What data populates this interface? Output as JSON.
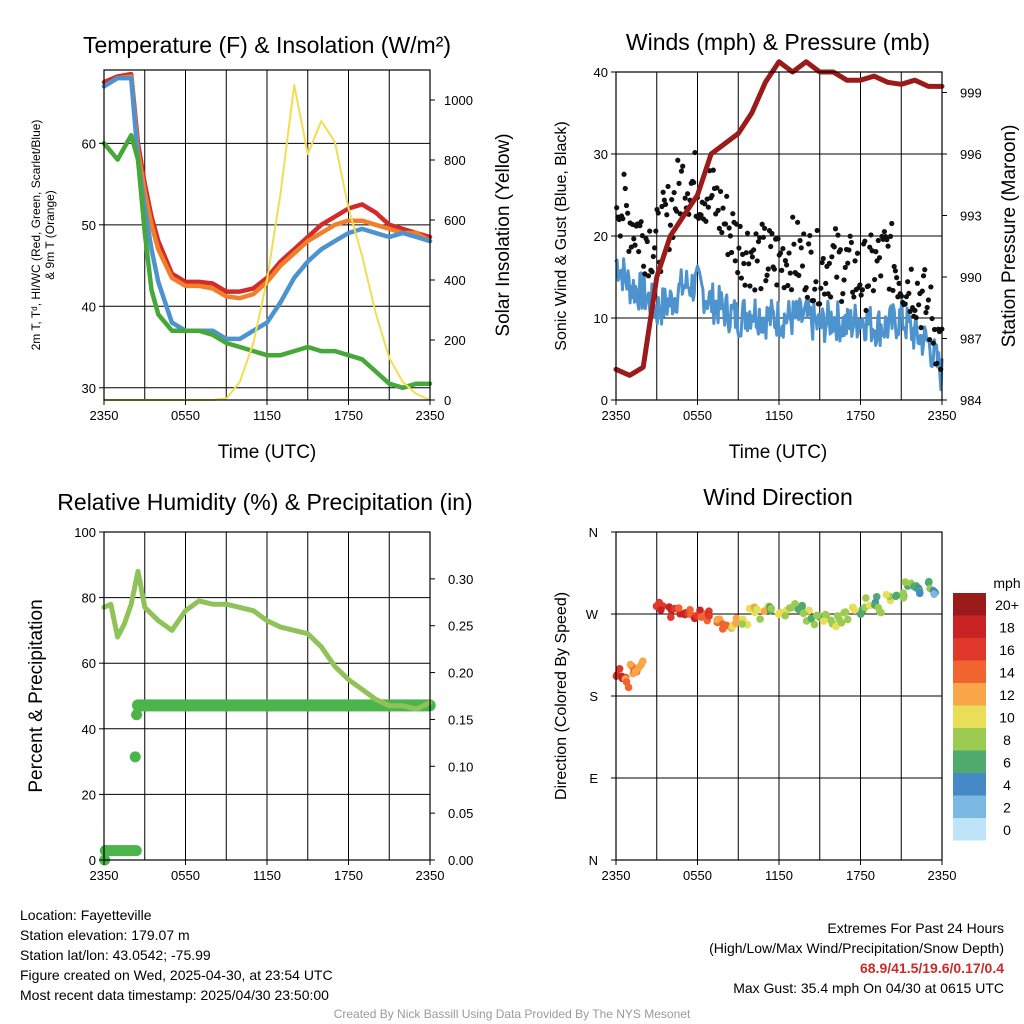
{
  "chart_data": [
    {
      "type": "line",
      "title": "Temperature (F) & Insolation (W/m²)",
      "xlabel": "Time (UTC)",
      "ylabel": "2m T, Tᵈ, HI/WC (Red, Green, Scarlet/Blue) & 9m T (Orange)",
      "ylabel_line1": "2m T, Tᵈ, HI/WC (Red, Green, Scarlet/Blue)",
      "ylabel_line2": "& 9m T (Orange)",
      "y2label": "Solar Insolation (Yellow)",
      "x_ticks": [
        "2350",
        "0550",
        "1150",
        "1750",
        "2350"
      ],
      "ylim": [
        28.5,
        69
      ],
      "y_ticks": [
        30,
        40,
        50,
        60
      ],
      "y2lim": [
        0,
        1100
      ],
      "y2_ticks": [
        0,
        200,
        400,
        600,
        800,
        1000
      ],
      "x_hours": [
        0,
        1,
        2,
        2.5,
        3,
        3.5,
        4,
        5,
        6,
        7,
        8,
        9,
        10,
        11,
        12,
        13,
        14,
        15,
        16,
        17,
        18,
        19,
        20,
        21,
        22,
        23,
        24
      ],
      "series": [
        {
          "name": "2m T",
          "color": "#d42a2a",
          "axis": "left",
          "values": [
            67.5,
            68.2,
            68.5,
            60,
            55,
            51,
            48,
            44,
            43,
            43,
            42.8,
            41.8,
            41.8,
            42.2,
            43.5,
            45.5,
            47,
            48.5,
            50,
            51,
            52,
            52.5,
            51.5,
            50,
            49.5,
            49,
            48.5
          ]
        },
        {
          "name": "9m T",
          "color": "#f07e2a",
          "axis": "left",
          "values": [
            67,
            68,
            68.2,
            59,
            54,
            50,
            47,
            43.5,
            42.5,
            42.5,
            42.2,
            41.2,
            41,
            41.5,
            43,
            45,
            46.5,
            48,
            49,
            50,
            50.5,
            50.5,
            50,
            49.5,
            49,
            49,
            48
          ]
        },
        {
          "name": "WC",
          "color": "#4d94cf",
          "axis": "left",
          "values": [
            67,
            68,
            68,
            58,
            52,
            47,
            43,
            38,
            37,
            37,
            37,
            36,
            36,
            37,
            38,
            40.5,
            43.5,
            45.5,
            47,
            48,
            49,
            49.5,
            49,
            48.5,
            49,
            48.5,
            48
          ]
        },
        {
          "name": "2m Td",
          "color": "#45a838",
          "axis": "left",
          "values": [
            60,
            58,
            61,
            58,
            49,
            42,
            39,
            37,
            37,
            37,
            36.5,
            35.5,
            35,
            34.5,
            34,
            34,
            34.5,
            35,
            34.5,
            34.5,
            34,
            33.5,
            32,
            30.5,
            30,
            30.5,
            30.5
          ]
        },
        {
          "name": "Solar Insolation",
          "color": "#f2de52",
          "axis": "right",
          "values": [
            0,
            0,
            0,
            0,
            0,
            0,
            0,
            0,
            0,
            0,
            0,
            5,
            60,
            190,
            400,
            690,
            1050,
            820,
            930,
            860,
            640,
            480,
            290,
            140,
            60,
            20,
            0
          ]
        }
      ]
    },
    {
      "type": "scatter",
      "title": "Winds (mph) & Pressure (mb)",
      "xlabel": "Time (UTC)",
      "ylabel": "Sonic Wind & Gust (Blue, Black)",
      "y2label": "Station Pressure (Maroon)",
      "x_ticks": [
        "2350",
        "0550",
        "1150",
        "1750",
        "2350"
      ],
      "ylim": [
        0,
        40
      ],
      "y_ticks": [
        0,
        10,
        20,
        30,
        40
      ],
      "y2lim": [
        984,
        1000
      ],
      "y2_ticks": [
        984,
        987,
        990,
        993,
        996,
        999
      ],
      "x_hours": [
        0,
        1,
        2,
        3,
        4,
        5,
        6,
        7,
        8,
        9,
        10,
        11,
        12,
        13,
        14,
        15,
        16,
        17,
        18,
        19,
        20,
        21,
        22,
        23,
        24
      ],
      "series": [
        {
          "name": "Sonic Wind",
          "color": "#4d94cf",
          "axis": "left",
          "values": [
            17,
            14,
            13,
            11,
            12,
            14,
            14,
            12,
            11,
            10,
            11,
            10,
            10,
            10,
            10,
            9,
            10,
            9,
            10,
            9,
            9,
            10,
            8,
            7,
            3
          ]
        },
        {
          "name": "Gust",
          "color": "#111111",
          "axis": "left",
          "values": [
            25,
            22,
            20,
            19,
            23,
            27,
            26,
            25,
            22,
            19,
            18,
            17,
            17,
            18,
            17,
            16,
            17,
            16,
            15,
            16,
            18,
            15,
            14,
            11,
            6
          ]
        },
        {
          "name": "Station Pressure",
          "color": "#9b1b1b",
          "axis": "right",
          "values": [
            985.5,
            985.2,
            985.6,
            990,
            992,
            993,
            994,
            996,
            996.5,
            997,
            998,
            999.5,
            1000.5,
            1000,
            1000.5,
            1000,
            1000,
            999.6,
            999.6,
            999.8,
            999.5,
            999.4,
            999.6,
            999.3,
            999.3
          ]
        }
      ]
    },
    {
      "type": "line",
      "title": "Relative Humidity (%) & Precipitation (in)",
      "ylabel": "Percent & Precipitation",
      "x_ticks": [
        "2350",
        "0550",
        "1150",
        "1750",
        "2350"
      ],
      "ylim": [
        0,
        100
      ],
      "y_ticks": [
        0,
        20,
        40,
        60,
        80,
        100
      ],
      "y2lim": [
        0,
        0.35
      ],
      "y2_ticks": [
        "0.00",
        "0.05",
        "0.10",
        "0.15",
        "0.20",
        "0.25",
        "0.30"
      ],
      "x_hours": [
        0,
        0.5,
        1,
        1.5,
        2,
        2.5,
        3,
        4,
        5,
        6,
        7,
        8,
        9,
        10,
        11,
        12,
        13,
        14,
        15,
        16,
        17,
        18,
        19,
        20,
        21,
        22,
        23,
        24
      ],
      "series": [
        {
          "name": "Relative Humidity",
          "color": "#8fc35a",
          "axis": "left",
          "values": [
            77,
            78,
            68,
            72,
            78,
            88,
            77,
            73,
            70,
            76,
            79,
            78,
            78,
            77,
            76,
            73,
            71,
            70,
            69,
            65,
            59,
            55,
            52,
            49,
            47,
            47,
            46,
            48
          ]
        },
        {
          "name": "Precipitation",
          "color": "#4bb54b",
          "axis": "right",
          "values": [
            0.0,
            0.01,
            0.01,
            0.01,
            0.01,
            0.165,
            0.165,
            0.165,
            0.165,
            0.165,
            0.165,
            0.165,
            0.165,
            0.165,
            0.165,
            0.165,
            0.165,
            0.165,
            0.165,
            0.165,
            0.165,
            0.165,
            0.165,
            0.165,
            0.165,
            0.165,
            0.165,
            0.165
          ]
        }
      ],
      "precip_step_points": [
        [
          0.05,
          0.0
        ],
        [
          0.1,
          0.01
        ],
        [
          2.3,
          0.11
        ],
        [
          2.4,
          0.155
        ]
      ]
    },
    {
      "type": "scatter",
      "title": "Wind Direction",
      "ylabel": "Direction (Colored By Speed)",
      "x_ticks": [
        "2350",
        "0550",
        "1150",
        "1750",
        "2350"
      ],
      "y_ticks": [
        "N",
        "E",
        "S",
        "W",
        "N"
      ],
      "ylim": [
        0,
        360
      ],
      "colorbar_title": "mph",
      "colorbar_labels": [
        "20+",
        "18",
        "16",
        "14",
        "12",
        "10",
        "8",
        "6",
        "4",
        "2",
        "0"
      ],
      "colorbar_colors": [
        "#9b1b1b",
        "#c82424",
        "#e0392b",
        "#f0652f",
        "#f8a647",
        "#e9de57",
        "#9ccb52",
        "#4faa6d",
        "#4689c5",
        "#7bb8e2",
        "#bfe3f7"
      ],
      "x_hours": [
        0.2,
        0.5,
        0.8,
        1.1,
        1.4,
        1.8,
        3.1,
        3.5,
        4.0,
        4.5,
        5.0,
        5.5,
        6.0,
        6.5,
        7.0,
        7.5,
        8.0,
        8.5,
        9.0,
        9.5,
        10.0,
        10.5,
        11.0,
        11.5,
        12.0,
        12.5,
        13.0,
        13.5,
        14.0,
        14.5,
        15.0,
        15.5,
        16.0,
        16.5,
        17.0,
        17.5,
        18.0,
        18.5,
        19.0,
        19.5,
        20.0,
        20.5,
        21.0,
        21.5,
        22.0,
        22.5,
        23.0,
        23.5
      ],
      "direction": [
        205,
        200,
        195,
        210,
        205,
        215,
        280,
        275,
        272,
        275,
        270,
        272,
        270,
        268,
        273,
        262,
        255,
        258,
        265,
        262,
        275,
        270,
        278,
        276,
        272,
        274,
        280,
        276,
        268,
        262,
        265,
        268,
        260,
        264,
        270,
        280,
        275,
        282,
        284,
        276,
        288,
        295,
        290,
        300,
        297,
        293,
        302,
        297
      ],
      "speed": [
        16,
        17,
        14,
        14,
        13,
        12,
        15,
        16,
        18,
        16,
        17,
        15,
        16,
        14,
        16,
        12,
        13,
        11,
        11,
        10,
        10,
        9,
        10,
        8,
        10,
        9,
        8,
        6,
        9,
        8,
        7,
        10,
        9,
        8,
        6,
        9,
        7,
        8,
        6,
        7,
        9,
        5,
        6,
        7,
        5,
        4,
        6,
        4
      ]
    }
  ],
  "info": {
    "location": "Location: Fayetteville",
    "elevation": "Station elevation: 179.07 m",
    "latlon": "Station lat/lon: 43.0542; -75.99",
    "created": "Figure created on Wed, 2025-04-30, at 23:54 UTC",
    "recent": "Most recent data timestamp: 2025/04/30 23:50:00"
  },
  "extremes": {
    "title": "Extremes For Past 24 Hours",
    "subtitle": "(High/Low/Max Wind/Precipitation/Snow Depth)",
    "values": "68.9/41.5/19.6/0.17/0.4",
    "gust": "Max Gust: 35.4 mph On 04/30 at 0615 UTC"
  },
  "credit": "Created By Nick Bassill Using Data Provided By The NYS Mesonet"
}
